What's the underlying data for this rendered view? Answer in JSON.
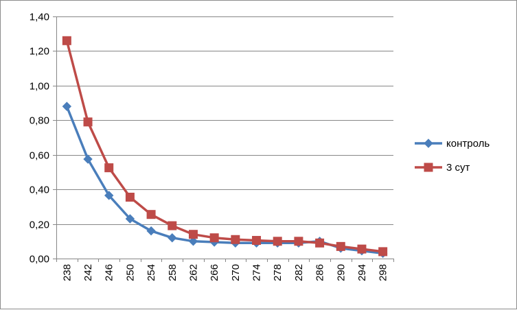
{
  "chart_data": {
    "type": "line",
    "title": "",
    "xlabel": "",
    "ylabel": "",
    "categories": [
      "238",
      "242",
      "246",
      "250",
      "254",
      "258",
      "262",
      "266",
      "270",
      "274",
      "278",
      "282",
      "286",
      "290",
      "294",
      "298"
    ],
    "ylim": [
      0,
      1.4
    ],
    "yticks": [
      "0,00",
      "0,20",
      "0,40",
      "0,60",
      "0,80",
      "1,00",
      "1,20",
      "1,40"
    ],
    "grid": true,
    "legend_position": "right",
    "series": [
      {
        "name": "контроль",
        "color": "#4a7ebb",
        "marker": "diamond",
        "values": [
          0.88,
          0.575,
          0.365,
          0.23,
          0.16,
          0.12,
          0.1,
          0.095,
          0.09,
          0.09,
          0.09,
          0.09,
          0.1,
          0.06,
          0.045,
          0.03
        ]
      },
      {
        "name": "3 сут",
        "color": "#be4b48",
        "marker": "square",
        "values": [
          1.26,
          0.79,
          0.525,
          0.355,
          0.255,
          0.19,
          0.14,
          0.12,
          0.11,
          0.105,
          0.1,
          0.1,
          0.09,
          0.07,
          0.055,
          0.04
        ]
      }
    ]
  }
}
